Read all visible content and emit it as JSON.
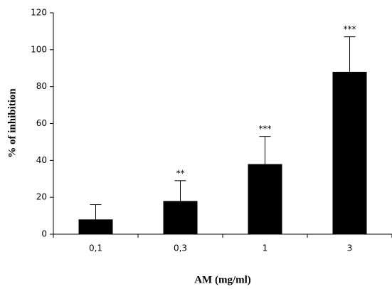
{
  "chart_data": {
    "type": "bar",
    "x_label": "AM (mg/ml)",
    "y_label": "% of inhibition",
    "categories": [
      "0,1",
      "0,3",
      "1",
      "3"
    ],
    "values": [
      8,
      18,
      38,
      88
    ],
    "errors": [
      8,
      11,
      15,
      19
    ],
    "significance": [
      null,
      "**",
      "***",
      "***"
    ],
    "color": "#000000",
    "ylim": [
      0,
      120
    ],
    "yticks": [
      0,
      20,
      40,
      60,
      80,
      100,
      120
    ],
    "grid": false
  }
}
